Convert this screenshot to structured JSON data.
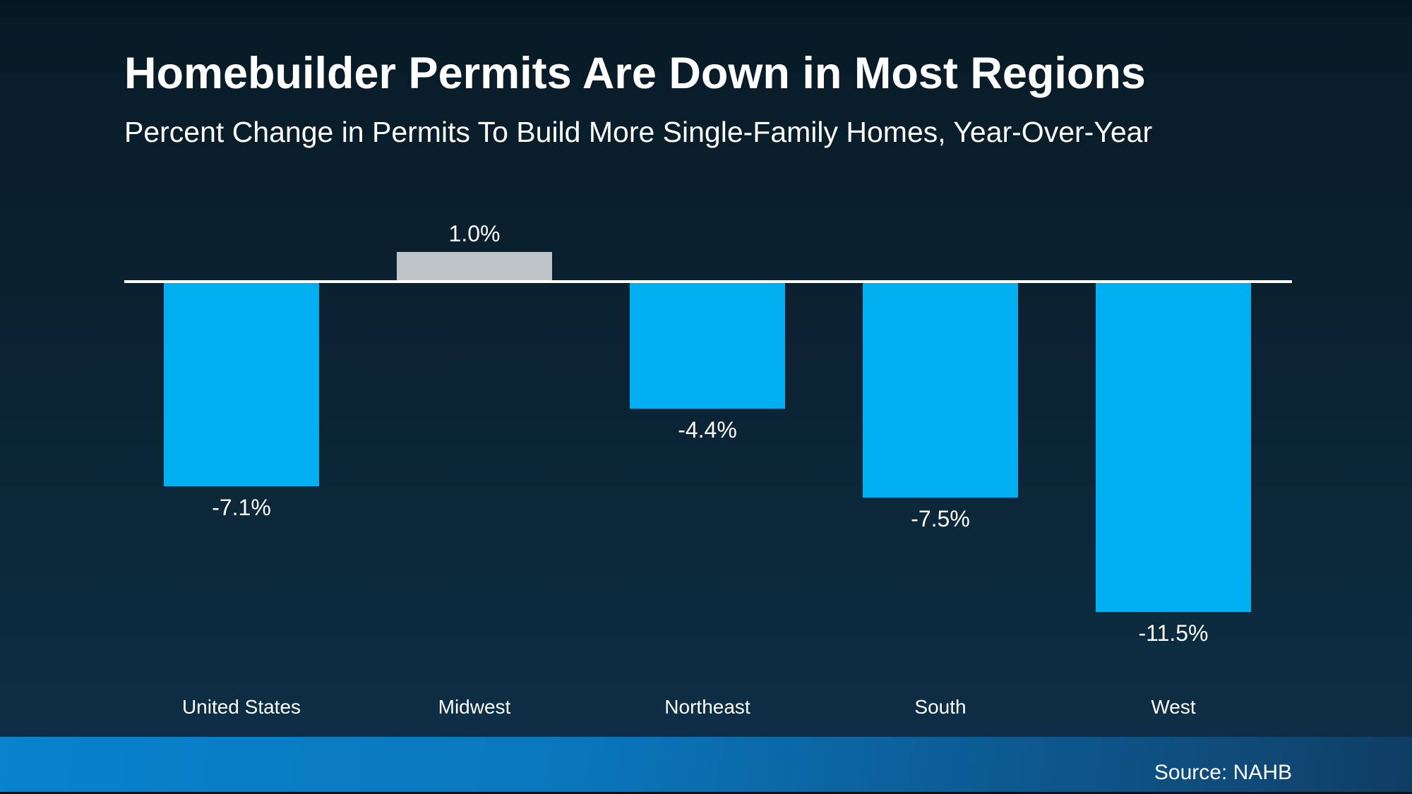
{
  "header": {
    "title": "Homebuilder Permits Are Down in Most Regions",
    "subtitle": "Percent Change in Permits To Build More Single-Family Homes, Year-Over-Year"
  },
  "footer": {
    "source": "Source: NAHB"
  },
  "colors": {
    "background_top": "#081b27",
    "background_bottom": "#0d2f46",
    "bar_negative": "#00b0f0",
    "bar_positive": "#bec3c6",
    "axis_line": "#ffffff",
    "text": "#ffffff",
    "footer_gradient_left": "#0883cd",
    "footer_gradient_right": "#0e3d61"
  },
  "chart_data": {
    "type": "bar",
    "orientation": "vertical",
    "title": "Homebuilder Permits Are Down in Most Regions",
    "subtitle": "Percent Change in Permits To Build More Single-Family Homes, Year-Over-Year",
    "source": "Source: NAHB",
    "categories": [
      "United States",
      "Midwest",
      "Northeast",
      "South",
      "West"
    ],
    "values": [
      -7.1,
      1.0,
      -4.4,
      -7.5,
      -11.5
    ],
    "value_labels": [
      "-7.1%",
      "1.0%",
      "-4.4%",
      "-7.5%",
      "-11.5%"
    ],
    "bar_colors": [
      "#00b0f0",
      "#bec3c6",
      "#00b0f0",
      "#00b0f0",
      "#00b0f0"
    ],
    "ylabel": "",
    "xlabel": "",
    "ylim": [
      -12.5,
      2.5
    ],
    "baseline": 0,
    "grid": false,
    "legend": false,
    "axis_line_visible": true
  }
}
